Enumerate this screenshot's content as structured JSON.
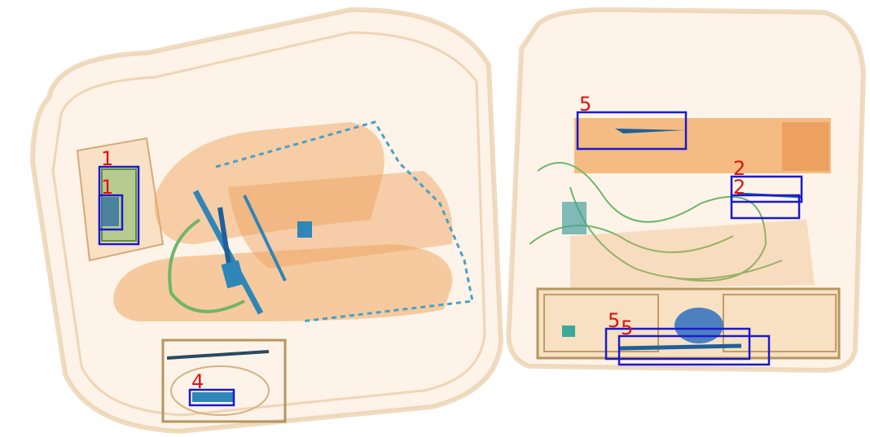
{
  "image": {
    "kind": "x-ray baggage scan",
    "colors": {
      "background": "#ffffff",
      "organic": "#f0a860",
      "organic_dark": "#e08a40",
      "bag_edge": "#c49060",
      "metal": "#2f86b8",
      "metal_dark": "#1f5f9a",
      "chain": "#4aa0c8",
      "cable": "#6fb56a",
      "box_stroke": "#1a1acc",
      "label_color": "#e01010"
    }
  },
  "detections": [
    {
      "label": "1"
    },
    {
      "label": "1"
    },
    {
      "label": "5"
    },
    {
      "label": "2"
    },
    {
      "label": "2"
    },
    {
      "label": "4"
    },
    {
      "label": "5"
    },
    {
      "label": "5"
    }
  ]
}
